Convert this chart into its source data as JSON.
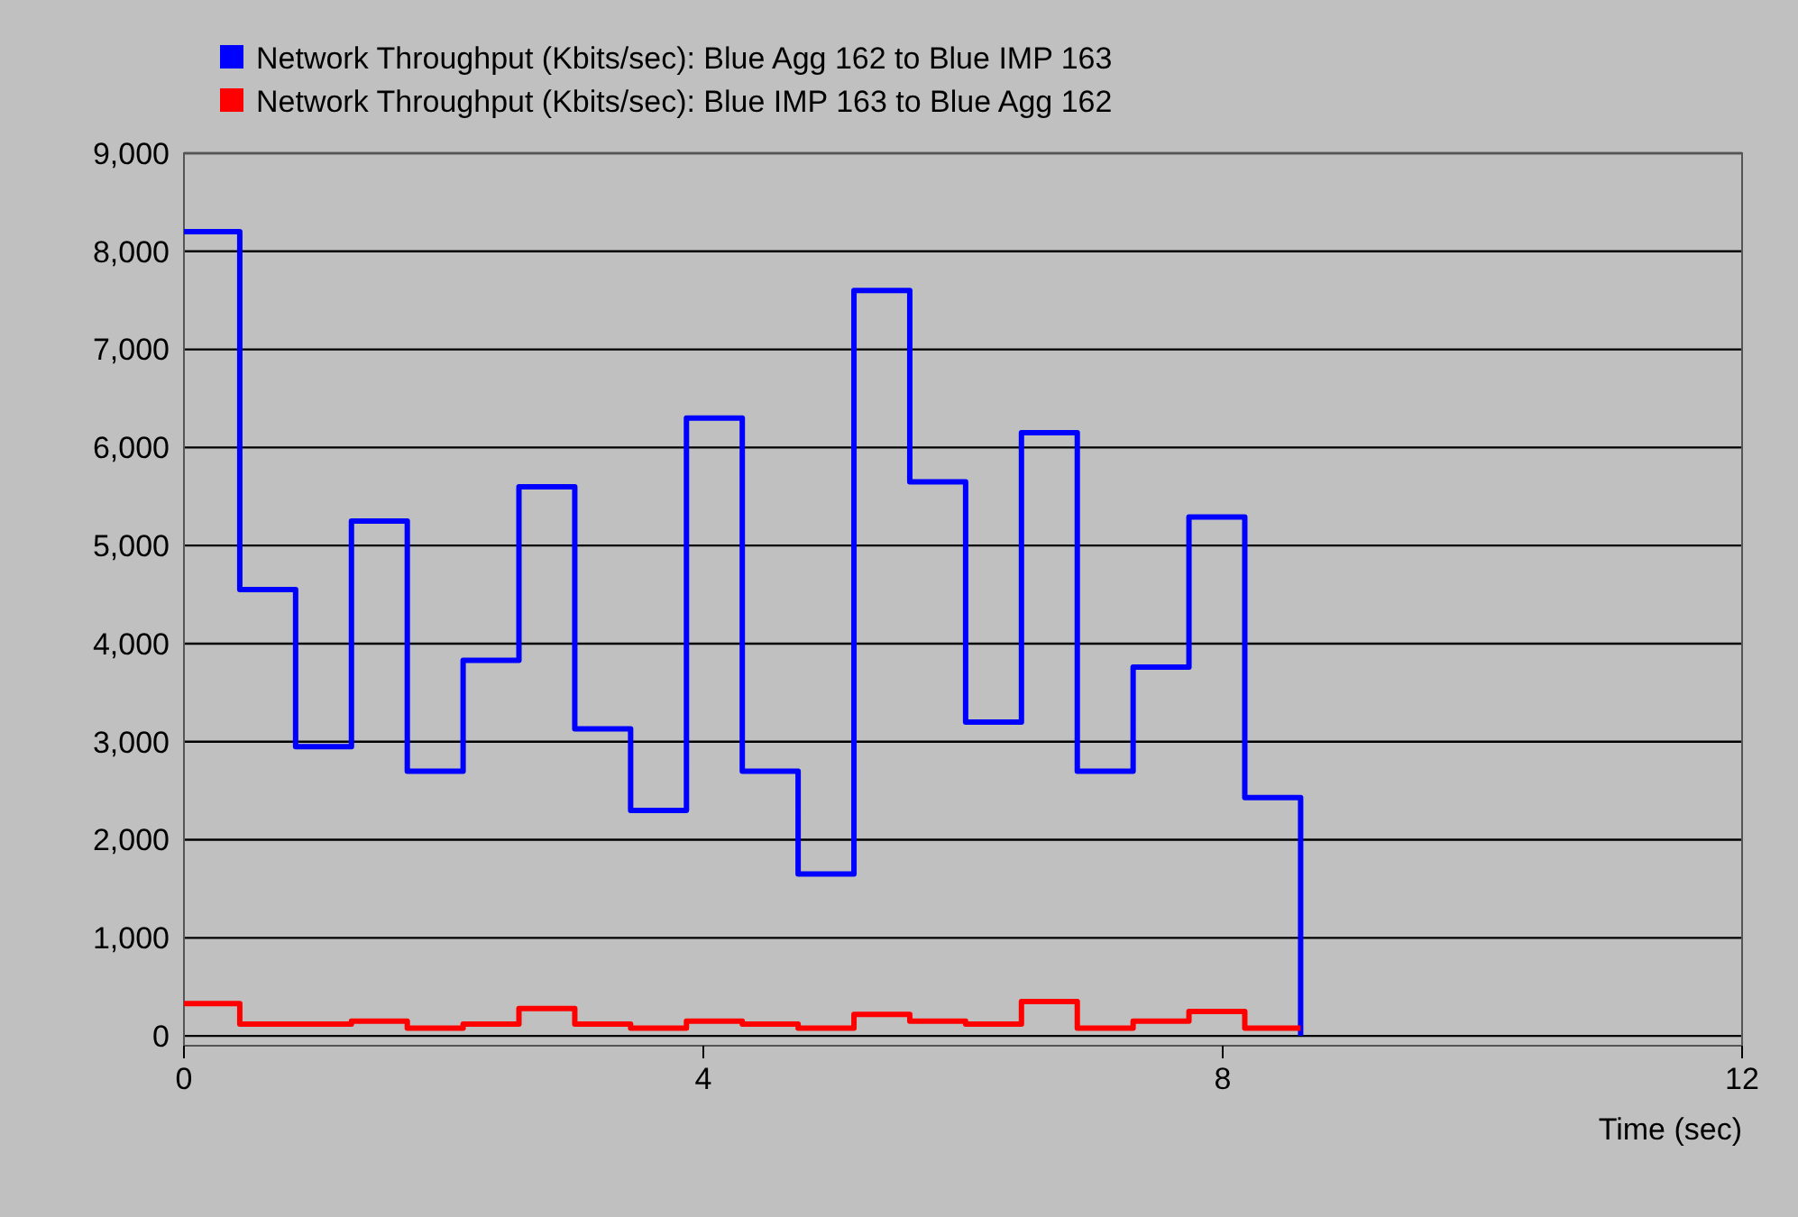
{
  "chart_data": {
    "type": "step",
    "xlabel": "Time (sec)",
    "x": [
      0,
      0.43,
      0.86,
      1.29,
      1.72,
      2.15,
      2.58,
      3.01,
      3.44,
      3.87,
      4.3,
      4.73,
      5.16,
      5.59,
      6.02,
      6.45,
      6.88,
      7.31,
      7.74,
      8.17,
      8.6
    ],
    "series": [
      {
        "name": "Network Throughput (Kbits/sec): Blue Agg 162 to Blue IMP 163",
        "color": "#0000ff",
        "values": [
          8200,
          4550,
          2950,
          5250,
          2700,
          3830,
          5600,
          3130,
          2300,
          6300,
          2700,
          1650,
          7600,
          5650,
          3200,
          6150,
          2700,
          3760,
          5290,
          2430,
          0
        ]
      },
      {
        "name": "Network Throughput (Kbits/sec): Blue IMP 163 to Blue Agg 162",
        "color": "#ff0000",
        "values": [
          330,
          120,
          120,
          150,
          80,
          120,
          280,
          120,
          80,
          150,
          120,
          80,
          220,
          150,
          120,
          350,
          80,
          150,
          250,
          80,
          80
        ]
      }
    ],
    "xlim": [
      0,
      12
    ],
    "xticks": [
      0,
      4,
      8,
      12
    ],
    "ylim": [
      -100,
      9000
    ],
    "yticks": [
      {
        "value": 0,
        "label": "0"
      },
      {
        "value": 1000,
        "label": "1,000"
      },
      {
        "value": 2000,
        "label": "2,000"
      },
      {
        "value": 3000,
        "label": "3,000"
      },
      {
        "value": 4000,
        "label": "4,000"
      },
      {
        "value": 5000,
        "label": "5,000"
      },
      {
        "value": 6000,
        "label": "6,000"
      },
      {
        "value": 7000,
        "label": "7,000"
      },
      {
        "value": 8000,
        "label": "8,000"
      },
      {
        "value": 9000,
        "label": "9,000"
      }
    ],
    "grid": "y",
    "legend": "top left",
    "line_style": "solid"
  }
}
